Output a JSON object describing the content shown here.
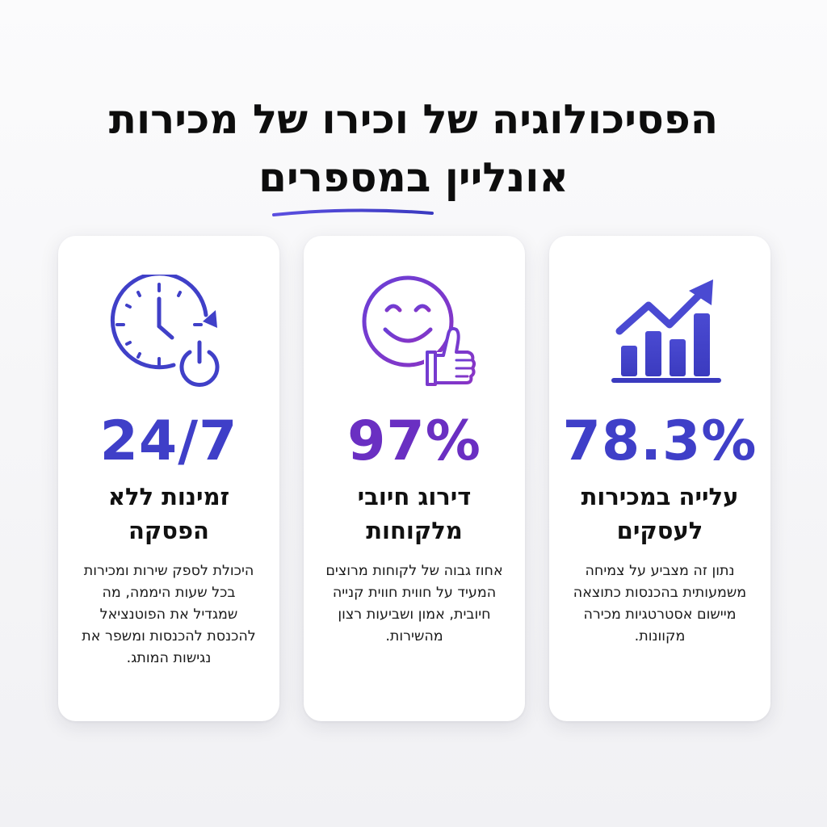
{
  "title": {
    "line1": "הפסיכולוגיה של וכירו של מכירות",
    "line2_plain": "אונליין",
    "line2_highlight": "במספרים"
  },
  "colors": {
    "blue": "#3f3fc8",
    "purple": "#6a2fc2",
    "underline": "#4b3fd0"
  },
  "cards": [
    {
      "icon": "growth-chart-icon",
      "stat": "78.3%",
      "heading": "עלייה במכירות לעסקים",
      "description": "נתון זה מצביע על צמיחה משמעותית בהכנסות כתוצאה מיישום אסטרטגיות מכירה מקוונות."
    },
    {
      "icon": "smiley-thumbs-up-icon",
      "stat": "97%",
      "heading": "דירוג חיובי מלקוחות",
      "description": "אחוז גבוה של לקוחות מרוצים המעיד על חווית חווית קנייה חיובית, אמון ושביעות רצון מהשירות."
    },
    {
      "icon": "clock-power-icon",
      "stat": "24/7",
      "heading": "זמינות ללא הפסקה",
      "description": "היכולת לספק שירות ומכירות בכל שעות היממה, מה שמגדיל את הפוטנציאל להכנסת להכנסות ומשפר את נגישות המותג."
    }
  ]
}
